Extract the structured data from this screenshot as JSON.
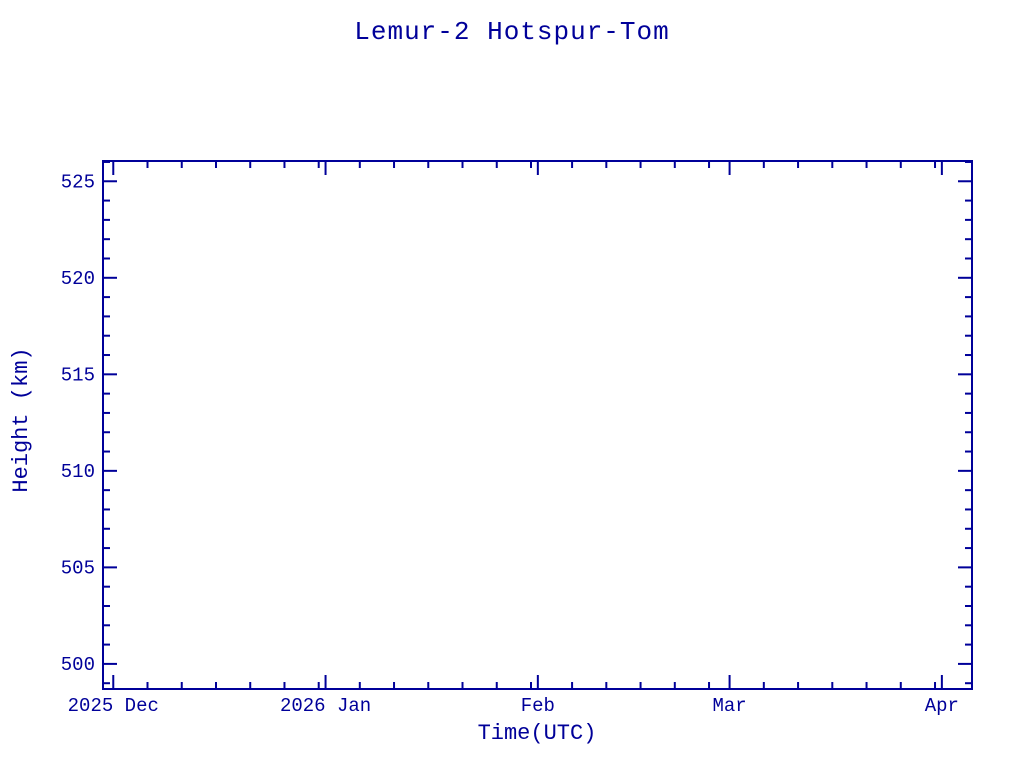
{
  "page": {
    "background_color": "#ffffff",
    "accent_color": "#000099"
  },
  "chart_data": {
    "type": "line",
    "title": "Lemur-2 Hotspur-Tom",
    "xlabel": "Time(UTC)",
    "ylabel": "Height (km)",
    "series": [],
    "legend": null,
    "grid": false,
    "frame": "box-with-inward-ticks",
    "x_axis": {
      "unit": "days since 2025-12-01 (UTC)",
      "range": [
        -1.5,
        125.4
      ],
      "major_ticks": [
        {
          "label": "2025 Dec",
          "day": 0
        },
        {
          "label": "2026 Jan",
          "day": 31
        },
        {
          "label": "Feb",
          "day": 62
        },
        {
          "label": "Mar",
          "day": 90
        },
        {
          "label": "Apr",
          "day": 121
        }
      ],
      "minor_tick_day_offsets": [
        5,
        10,
        15,
        20,
        25,
        30
      ]
    },
    "y_axis": {
      "range": [
        498.7,
        526.05
      ],
      "major_ticks": [
        500,
        505,
        510,
        515,
        520,
        525
      ],
      "minor_step": 1
    }
  }
}
